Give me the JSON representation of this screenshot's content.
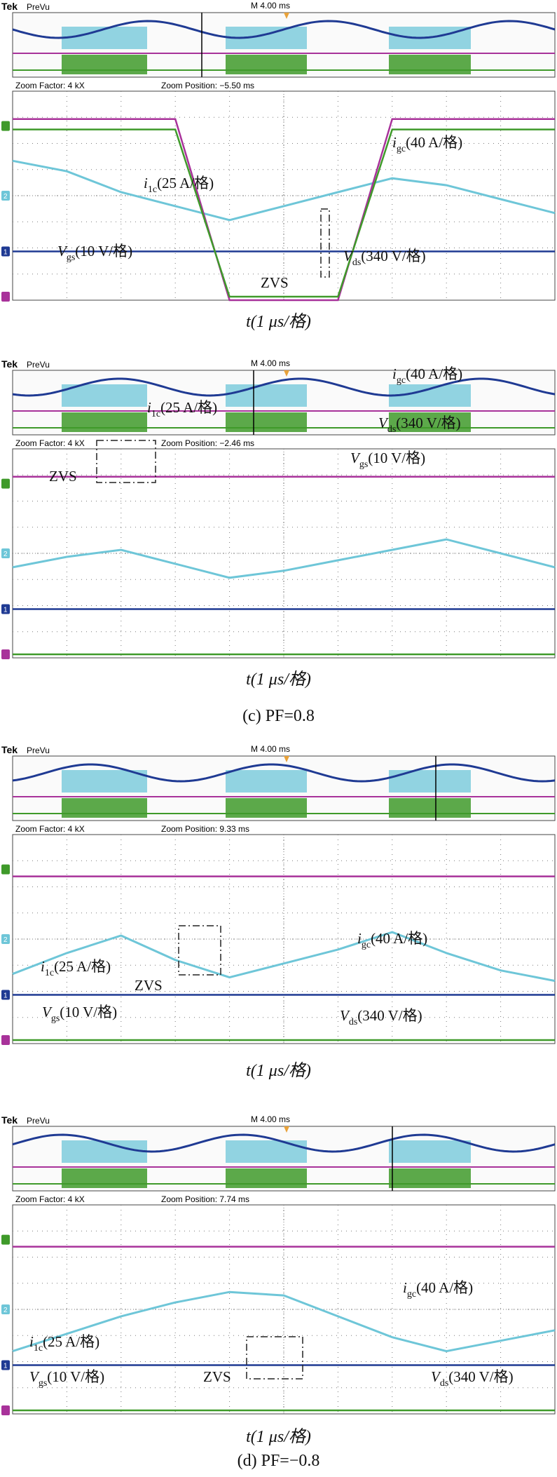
{
  "colors": {
    "igc": "#1f3a93",
    "ilc": "#6ec6d8",
    "vds": "#a8329a",
    "vgs": "#3f9a2a",
    "grid": "#7a7a7a",
    "marker_orange": "#e8a23a"
  },
  "figure_captions": [
    "(c) PF=0.8",
    "(d) PF=−0.8"
  ],
  "chart_data": [
    {
      "type": "line",
      "panel_index": 1,
      "header": {
        "brand": "Tek",
        "mode": "PreVu",
        "timebase": "M 4.00 ms"
      },
      "zoom": {
        "factor": "Zoom Factor: 4 kX",
        "position": "Zoom Position: −5.50 ms"
      },
      "xlabel": "t(1 μs/格)",
      "channel_badges": [
        "1",
        "2",
        "",
        ""
      ],
      "annotations": {
        "igc": {
          "sym": "i",
          "sub": "gc",
          "tail": "(40 A/格)"
        },
        "ilc": {
          "sym": "i",
          "sub": "1c",
          "tail": "(25 A/格)"
        },
        "vgs": {
          "sym": "V",
          "sub": "gs",
          "tail": "(10 V/格)"
        },
        "vds": {
          "sym": "V",
          "sub": "ds",
          "tail": "(340 V/格)"
        },
        "zvs": "ZVS"
      },
      "x": [
        0,
        1,
        2,
        3,
        4,
        5,
        6,
        7,
        8,
        9,
        10
      ],
      "series": [
        {
          "name": "igc",
          "values": [
            0.7,
            0.7,
            0.7,
            0.7,
            0.7,
            0.7,
            0.7,
            0.7,
            0.7,
            0.7,
            0.7
          ]
        },
        {
          "name": "ilc",
          "values": [
            2.0,
            1.85,
            1.55,
            1.35,
            1.15,
            1.35,
            1.55,
            1.75,
            1.65,
            1.45,
            1.25
          ]
        },
        {
          "name": "vds",
          "values": [
            2.6,
            2.6,
            2.6,
            2.6,
            0.0,
            0.0,
            0.0,
            2.6,
            2.6,
            2.6,
            2.6
          ]
        },
        {
          "name": "vgs",
          "values": [
            2.45,
            2.45,
            2.45,
            2.45,
            0.05,
            0.05,
            0.05,
            2.45,
            2.45,
            2.45,
            2.45
          ]
        }
      ]
    },
    {
      "type": "line",
      "panel_index": 2,
      "header": {
        "brand": "Tek",
        "mode": "PreVu",
        "timebase": "M 4.00 ms"
      },
      "zoom": {
        "factor": "Zoom Factor: 4 kX",
        "position": "Zoom Position: −2.46 ms"
      },
      "xlabel": "t(1 μs/格)",
      "channel_badges": [
        "1",
        "2",
        "",
        ""
      ],
      "annotations": {
        "igc": {
          "sym": "i",
          "sub": "gc",
          "tail": "(40 A/格)"
        },
        "ilc": {
          "sym": "i",
          "sub": "1c",
          "tail": "(25 A/格)"
        },
        "vgs": {
          "sym": "V",
          "sub": "gs",
          "tail": "(10 V/格)"
        },
        "vds": {
          "sym": "V",
          "sub": "ds",
          "tail": "(340 V/格)"
        },
        "zvs": "ZVS"
      },
      "x": [
        0,
        1,
        2,
        3,
        4,
        5,
        6,
        7,
        8,
        9,
        10
      ],
      "series": [
        {
          "name": "igc",
          "values": [
            0.7,
            0.7,
            0.7,
            0.7,
            0.7,
            0.7,
            0.7,
            0.7,
            0.7,
            0.7,
            0.7
          ]
        },
        {
          "name": "ilc",
          "values": [
            1.3,
            1.45,
            1.55,
            1.35,
            1.15,
            1.25,
            1.4,
            1.55,
            1.7,
            1.5,
            1.3
          ]
        },
        {
          "name": "vds",
          "values": [
            2.6,
            2.6,
            2.6,
            2.6,
            2.6,
            2.6,
            2.6,
            2.6,
            2.6,
            2.6,
            2.6
          ]
        },
        {
          "name": "vgs",
          "values": [
            0.05,
            0.05,
            0.05,
            0.05,
            0.05,
            0.05,
            0.05,
            0.05,
            0.05,
            0.05,
            0.05
          ]
        }
      ]
    },
    {
      "type": "line",
      "panel_index": 3,
      "header": {
        "brand": "Tek",
        "mode": "PreVu",
        "timebase": "M 4.00 ms"
      },
      "zoom": {
        "factor": "Zoom Factor: 4 kX",
        "position": "Zoom Position: 9.33 ms"
      },
      "xlabel": "t(1 μs/格)",
      "channel_badges": [
        "1",
        "2",
        "",
        ""
      ],
      "annotations": {
        "igc": {
          "sym": "i",
          "sub": "gc",
          "tail": "(40 A/格)"
        },
        "ilc": {
          "sym": "i",
          "sub": "1c",
          "tail": "(25 A/格)"
        },
        "vgs": {
          "sym": "V",
          "sub": "gs",
          "tail": "(10 V/格)"
        },
        "vds": {
          "sym": "V",
          "sub": "ds",
          "tail": "(340 V/格)"
        },
        "zvs": "ZVS"
      },
      "x": [
        0,
        1,
        2,
        3,
        4,
        5,
        6,
        7,
        8,
        9,
        10
      ],
      "series": [
        {
          "name": "igc",
          "values": [
            0.7,
            0.7,
            0.7,
            0.7,
            0.7,
            0.7,
            0.7,
            0.7,
            0.7,
            0.7,
            0.7
          ]
        },
        {
          "name": "ilc",
          "values": [
            1.0,
            1.3,
            1.55,
            1.2,
            0.95,
            1.15,
            1.35,
            1.6,
            1.3,
            1.05,
            0.9
          ]
        },
        {
          "name": "vds",
          "values": [
            2.4,
            2.4,
            2.4,
            2.4,
            2.4,
            2.4,
            2.4,
            2.4,
            2.4,
            2.4,
            2.4
          ]
        },
        {
          "name": "vgs",
          "values": [
            0.05,
            0.05,
            0.05,
            0.05,
            0.05,
            0.05,
            0.05,
            0.05,
            0.05,
            0.05,
            0.05
          ]
        }
      ]
    },
    {
      "type": "line",
      "panel_index": 4,
      "header": {
        "brand": "Tek",
        "mode": "PreVu",
        "timebase": "M 4.00 ms"
      },
      "zoom": {
        "factor": "Zoom Factor: 4 kX",
        "position": "Zoom Position: 7.74 ms"
      },
      "xlabel": "t(1 μs/格)",
      "channel_badges": [
        "1",
        "2",
        "",
        ""
      ],
      "annotations": {
        "igc": {
          "sym": "i",
          "sub": "gc",
          "tail": "(40 A/格)"
        },
        "ilc": {
          "sym": "i",
          "sub": "1c",
          "tail": "(25 A/格)"
        },
        "vgs": {
          "sym": "V",
          "sub": "gs",
          "tail": "(10 V/格)"
        },
        "vds": {
          "sym": "V",
          "sub": "ds",
          "tail": "(340 V/格)"
        },
        "zvs": "ZVS"
      },
      "x": [
        0,
        1,
        2,
        3,
        4,
        5,
        6,
        7,
        8,
        9,
        10
      ],
      "series": [
        {
          "name": "igc",
          "values": [
            0.7,
            0.7,
            0.7,
            0.7,
            0.7,
            0.7,
            0.7,
            0.7,
            0.7,
            0.7,
            0.7
          ]
        },
        {
          "name": "ilc",
          "values": [
            0.9,
            1.15,
            1.4,
            1.6,
            1.75,
            1.7,
            1.4,
            1.1,
            0.9,
            1.05,
            1.2
          ]
        },
        {
          "name": "vds",
          "values": [
            2.4,
            2.4,
            2.4,
            2.4,
            2.4,
            2.4,
            2.4,
            2.4,
            2.4,
            2.4,
            2.4
          ]
        },
        {
          "name": "vgs",
          "values": [
            0.05,
            0.05,
            0.05,
            0.05,
            0.05,
            0.05,
            0.05,
            0.05,
            0.05,
            0.05,
            0.05
          ]
        }
      ]
    }
  ]
}
